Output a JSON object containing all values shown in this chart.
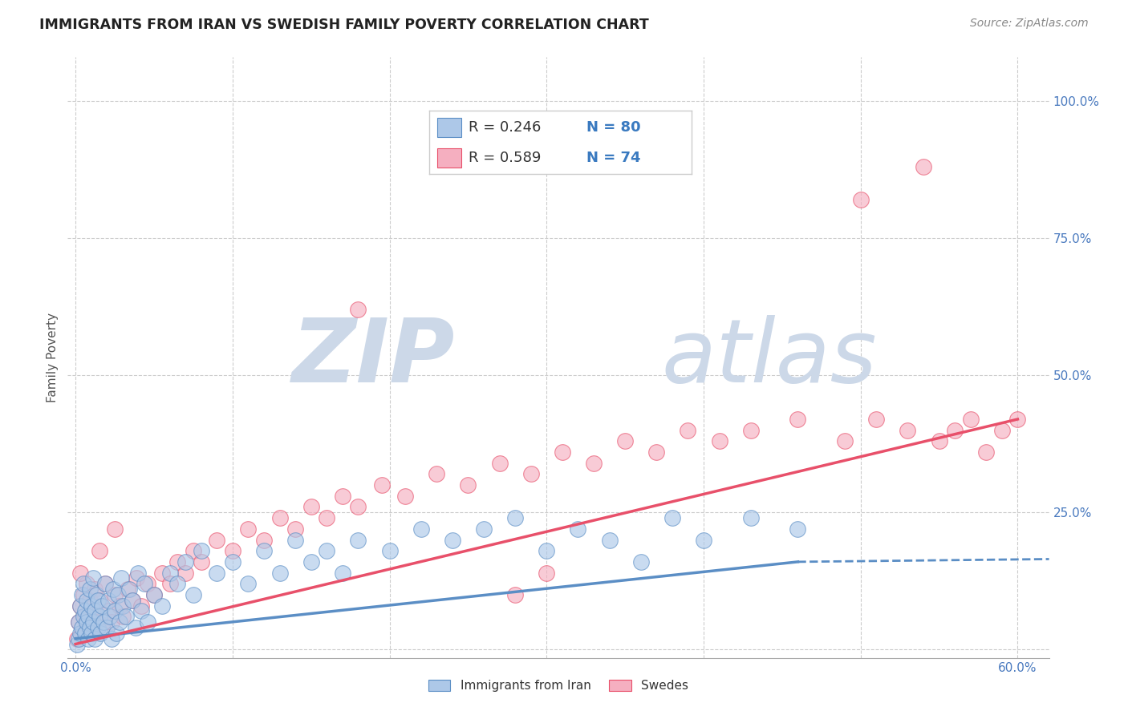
{
  "title": "IMMIGRANTS FROM IRAN VS SWEDISH FAMILY POVERTY CORRELATION CHART",
  "source_text": "Source: ZipAtlas.com",
  "ylabel": "Family Poverty",
  "xlim": [
    -0.005,
    0.62
  ],
  "ylim": [
    -0.015,
    1.08
  ],
  "xtick_show": [
    0.0,
    0.6
  ],
  "xticklabels_show": [
    "0.0%",
    "60.0%"
  ],
  "ytick_positions": [
    0.0,
    0.25,
    0.5,
    0.75,
    1.0
  ],
  "ytick_labels_right": [
    "",
    "25.0%",
    "50.0%",
    "75.0%",
    "100.0%"
  ],
  "blue_R": 0.246,
  "blue_N": 80,
  "pink_R": 0.589,
  "pink_N": 74,
  "blue_color": "#adc8e8",
  "pink_color": "#f5afc0",
  "blue_line_color": "#5b8ec5",
  "pink_line_color": "#e8506a",
  "watermark_zip": "ZIP",
  "watermark_atlas": "atlas",
  "watermark_color": "#ccd8e8",
  "background_color": "#ffffff",
  "grid_color": "#cccccc",
  "title_color": "#222222",
  "legend_label_1": "Immigrants from Iran",
  "legend_label_2": "Swedes",
  "blue_scatter_x": [
    0.001,
    0.002,
    0.002,
    0.003,
    0.003,
    0.004,
    0.004,
    0.005,
    0.005,
    0.006,
    0.006,
    0.007,
    0.007,
    0.008,
    0.008,
    0.009,
    0.009,
    0.01,
    0.01,
    0.011,
    0.011,
    0.012,
    0.012,
    0.013,
    0.014,
    0.014,
    0.015,
    0.016,
    0.017,
    0.018,
    0.019,
    0.02,
    0.021,
    0.022,
    0.023,
    0.024,
    0.025,
    0.026,
    0.027,
    0.028,
    0.029,
    0.03,
    0.032,
    0.034,
    0.036,
    0.038,
    0.04,
    0.042,
    0.044,
    0.046,
    0.05,
    0.055,
    0.06,
    0.065,
    0.07,
    0.075,
    0.08,
    0.09,
    0.1,
    0.11,
    0.12,
    0.13,
    0.14,
    0.15,
    0.16,
    0.17,
    0.18,
    0.2,
    0.22,
    0.24,
    0.26,
    0.28,
    0.3,
    0.32,
    0.34,
    0.36,
    0.38,
    0.4,
    0.43,
    0.46
  ],
  "blue_scatter_y": [
    0.01,
    0.02,
    0.05,
    0.03,
    0.08,
    0.04,
    0.1,
    0.06,
    0.12,
    0.03,
    0.07,
    0.05,
    0.09,
    0.02,
    0.06,
    0.04,
    0.11,
    0.03,
    0.08,
    0.05,
    0.13,
    0.02,
    0.07,
    0.1,
    0.04,
    0.09,
    0.06,
    0.03,
    0.08,
    0.05,
    0.12,
    0.04,
    0.09,
    0.06,
    0.02,
    0.11,
    0.07,
    0.03,
    0.1,
    0.05,
    0.13,
    0.08,
    0.06,
    0.11,
    0.09,
    0.04,
    0.14,
    0.07,
    0.12,
    0.05,
    0.1,
    0.08,
    0.14,
    0.12,
    0.16,
    0.1,
    0.18,
    0.14,
    0.16,
    0.12,
    0.18,
    0.14,
    0.2,
    0.16,
    0.18,
    0.14,
    0.2,
    0.18,
    0.22,
    0.2,
    0.22,
    0.24,
    0.18,
    0.22,
    0.2,
    0.16,
    0.24,
    0.2,
    0.24,
    0.22
  ],
  "pink_scatter_x": [
    0.001,
    0.002,
    0.003,
    0.004,
    0.005,
    0.006,
    0.007,
    0.008,
    0.009,
    0.01,
    0.011,
    0.012,
    0.013,
    0.015,
    0.017,
    0.019,
    0.021,
    0.023,
    0.025,
    0.028,
    0.03,
    0.033,
    0.036,
    0.039,
    0.042,
    0.046,
    0.05,
    0.055,
    0.06,
    0.065,
    0.07,
    0.075,
    0.08,
    0.09,
    0.1,
    0.11,
    0.12,
    0.13,
    0.14,
    0.15,
    0.16,
    0.17,
    0.18,
    0.195,
    0.21,
    0.23,
    0.25,
    0.27,
    0.29,
    0.31,
    0.33,
    0.35,
    0.37,
    0.39,
    0.41,
    0.43,
    0.46,
    0.49,
    0.51,
    0.53,
    0.55,
    0.56,
    0.57,
    0.58,
    0.59,
    0.6,
    0.003,
    0.015,
    0.025,
    0.18,
    0.28,
    0.3,
    0.5,
    0.54
  ],
  "pink_scatter_y": [
    0.02,
    0.05,
    0.08,
    0.03,
    0.1,
    0.06,
    0.12,
    0.04,
    0.09,
    0.03,
    0.07,
    0.11,
    0.05,
    0.09,
    0.04,
    0.12,
    0.07,
    0.05,
    0.1,
    0.08,
    0.06,
    0.11,
    0.09,
    0.13,
    0.08,
    0.12,
    0.1,
    0.14,
    0.12,
    0.16,
    0.14,
    0.18,
    0.16,
    0.2,
    0.18,
    0.22,
    0.2,
    0.24,
    0.22,
    0.26,
    0.24,
    0.28,
    0.26,
    0.3,
    0.28,
    0.32,
    0.3,
    0.34,
    0.32,
    0.36,
    0.34,
    0.38,
    0.36,
    0.4,
    0.38,
    0.4,
    0.42,
    0.38,
    0.42,
    0.4,
    0.38,
    0.4,
    0.42,
    0.36,
    0.4,
    0.42,
    0.14,
    0.18,
    0.22,
    0.62,
    0.1,
    0.14,
    0.82,
    0.88
  ],
  "blue_trend_x": [
    0.0,
    0.46
  ],
  "blue_trend_y_start": 0.02,
  "blue_trend_y_end": 0.16,
  "pink_trend_x": [
    0.0,
    0.6
  ],
  "pink_trend_y_start": 0.01,
  "pink_trend_y_end": 0.42
}
